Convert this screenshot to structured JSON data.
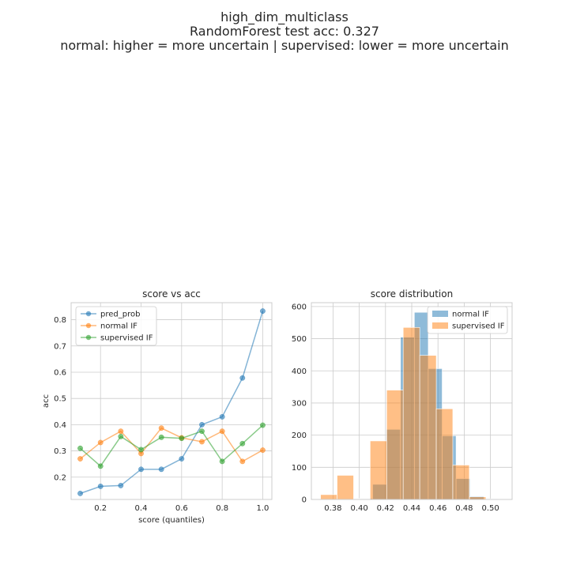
{
  "figure": {
    "title_lines": [
      "high_dim_multiclass",
      "RandomForest test acc: 0.327",
      "normal: higher = more uncertain | supervised: lower = more uncertain"
    ]
  },
  "colors": {
    "blue": "#1f77b4",
    "orange": "#ff7f0e",
    "green": "#2ca02c",
    "grid": "#cccccc",
    "axes_edge": "#cccccc",
    "text": "#262626"
  },
  "chart_data": [
    {
      "type": "line",
      "title": "score vs acc",
      "xlabel": "score (quantiles)",
      "ylabel": "acc",
      "xlim": [
        0.055,
        1.045
      ],
      "ylim": [
        0.115,
        0.865
      ],
      "xticks": [
        "0.2",
        "0.4",
        "0.6",
        "0.8",
        "1.0"
      ],
      "yticks": [
        "0.2",
        "0.3",
        "0.4",
        "0.5",
        "0.6",
        "0.7",
        "0.8"
      ],
      "grid": true,
      "legend_position": "upper left",
      "x": [
        0.1,
        0.2,
        0.3,
        0.4,
        0.5,
        0.6,
        0.7,
        0.8,
        0.9,
        1.0
      ],
      "series": [
        {
          "name": "pred_prob",
          "color": "#1f77b4",
          "values": [
            0.138,
            0.165,
            0.168,
            0.23,
            0.23,
            0.27,
            0.4,
            0.43,
            0.578,
            0.833
          ]
        },
        {
          "name": "normal IF",
          "color": "#ff7f0e",
          "values": [
            0.27,
            0.332,
            0.375,
            0.29,
            0.387,
            0.35,
            0.335,
            0.375,
            0.26,
            0.303
          ]
        },
        {
          "name": "supervised IF",
          "color": "#2ca02c",
          "values": [
            0.31,
            0.242,
            0.355,
            0.305,
            0.352,
            0.348,
            0.375,
            0.26,
            0.328,
            0.398
          ]
        }
      ]
    },
    {
      "type": "histogram",
      "title": "score distribution",
      "xlabel": "",
      "ylabel": "",
      "xlim": [
        0.3635,
        0.5165
      ],
      "ylim": [
        0,
        612
      ],
      "xticks": [
        "0.38",
        "0.40",
        "0.42",
        "0.44",
        "0.46",
        "0.48",
        "0.50"
      ],
      "yticks": [
        "0",
        "100",
        "200",
        "300",
        "400",
        "500",
        "600"
      ],
      "grid": true,
      "legend_position": "upper right",
      "series": [
        {
          "name": "normal IF",
          "color": "#1f77b4",
          "bins": [
            {
              "x0": 0.3996,
              "x1": 0.4102,
              "count": 3
            },
            {
              "x0": 0.4102,
              "x1": 0.4208,
              "count": 47
            },
            {
              "x0": 0.4208,
              "x1": 0.4314,
              "count": 218
            },
            {
              "x0": 0.4314,
              "x1": 0.442,
              "count": 505
            },
            {
              "x0": 0.442,
              "x1": 0.4526,
              "count": 582
            },
            {
              "x0": 0.4526,
              "x1": 0.4632,
              "count": 407
            },
            {
              "x0": 0.4632,
              "x1": 0.4738,
              "count": 198
            },
            {
              "x0": 0.4738,
              "x1": 0.4844,
              "count": 65
            },
            {
              "x0": 0.4844,
              "x1": 0.495,
              "count": 10
            },
            {
              "x0": 0.495,
              "x1": 0.5056,
              "count": 2
            }
          ]
        },
        {
          "name": "supervised IF",
          "color": "#ff7f0e",
          "bins": [
            {
              "x0": 0.3705,
              "x1": 0.3831,
              "count": 15
            },
            {
              "x0": 0.3831,
              "x1": 0.3957,
              "count": 75
            },
            {
              "x0": 0.3957,
              "x1": 0.4083,
              "count": 2
            },
            {
              "x0": 0.4083,
              "x1": 0.4209,
              "count": 182
            },
            {
              "x0": 0.4209,
              "x1": 0.4335,
              "count": 340
            },
            {
              "x0": 0.4335,
              "x1": 0.4461,
              "count": 535
            },
            {
              "x0": 0.4461,
              "x1": 0.4587,
              "count": 448
            },
            {
              "x0": 0.4587,
              "x1": 0.4713,
              "count": 282
            },
            {
              "x0": 0.4713,
              "x1": 0.4839,
              "count": 107
            },
            {
              "x0": 0.4839,
              "x1": 0.4965,
              "count": 8
            }
          ]
        }
      ]
    }
  ]
}
